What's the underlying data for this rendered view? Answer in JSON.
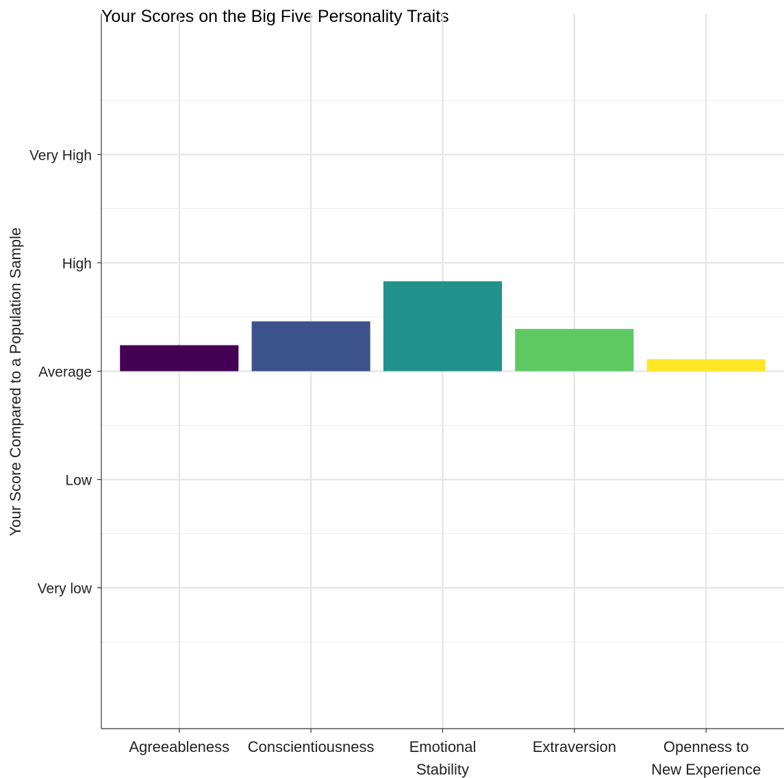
{
  "chart_data": {
    "type": "bar",
    "title": "Your Scores on the Big Five Personality Traits",
    "xlabel": "",
    "ylabel": "Your Score Compared to a Population Sample",
    "categories": [
      "Agreeableness",
      "Conscientiousness",
      "Emotional Stability",
      "Extraversion",
      "Openness to New Experience"
    ],
    "category_lines": [
      [
        "Agreeableness"
      ],
      [
        "Conscientiousness"
      ],
      [
        "Emotional",
        "Stability"
      ],
      [
        "Extraversion"
      ],
      [
        "Openness to",
        "New Experience"
      ]
    ],
    "values": [
      0.24,
      0.46,
      0.83,
      0.39,
      0.11
    ],
    "baseline": 0,
    "colors": [
      "#440154",
      "#3b528b",
      "#21918c",
      "#5ec962",
      "#fde725"
    ],
    "yticks": [
      {
        "value": -2,
        "label": "Very low"
      },
      {
        "value": -1,
        "label": "Low"
      },
      {
        "value": 0,
        "label": "Average"
      },
      {
        "value": 1,
        "label": "High"
      },
      {
        "value": 2,
        "label": "Very High"
      }
    ],
    "ylim": [
      -3.3,
      3.3
    ],
    "grid": true,
    "legend": "none"
  }
}
